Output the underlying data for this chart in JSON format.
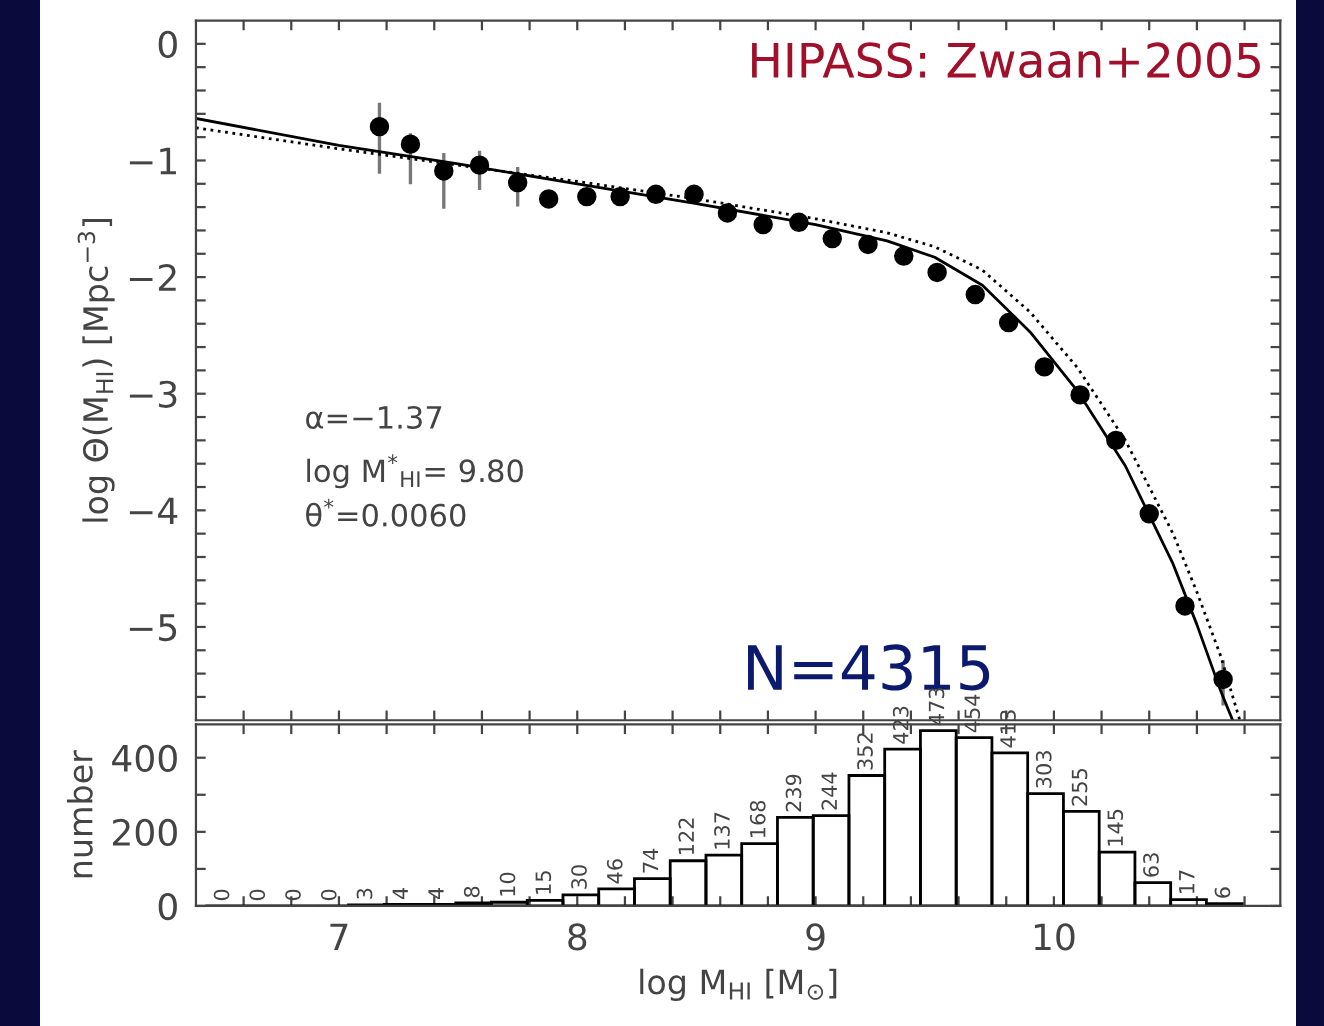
{
  "chart_data": [
    {
      "type": "scatter",
      "ylabel": "log Θ(M$_{HI}$) [Mpc$^{−3}$]",
      "xlim": [
        6.4,
        10.95
      ],
      "ylim": [
        -5.8,
        0.2
      ],
      "xticks": [
        {
          "value": 6.6,
          "label": null
        },
        {
          "value": 6.8,
          "label": null
        },
        {
          "value": 7,
          "label": null
        },
        {
          "value": 7.2,
          "label": null
        },
        {
          "value": 7.4,
          "label": null
        },
        {
          "value": 7.6,
          "label": null
        },
        {
          "value": 7.8,
          "label": null
        },
        {
          "value": 8,
          "label": null
        },
        {
          "value": 8.2,
          "label": null
        },
        {
          "value": 8.4,
          "label": null
        },
        {
          "value": 8.6,
          "label": null
        },
        {
          "value": 8.8,
          "label": null
        },
        {
          "value": 9,
          "label": null
        },
        {
          "value": 9.2,
          "label": null
        },
        {
          "value": 9.4,
          "label": null
        },
        {
          "value": 9.6,
          "label": null
        },
        {
          "value": 9.8,
          "label": null
        },
        {
          "value": 10,
          "label": null
        },
        {
          "value": 10.2,
          "label": null
        },
        {
          "value": 10.4,
          "label": null
        },
        {
          "value": 10.6,
          "label": null
        },
        {
          "value": 10.8,
          "label": null
        }
      ],
      "yticks": [
        0,
        {
          "value": -0.2,
          "label": null
        },
        {
          "value": -0.4,
          "label": null
        },
        {
          "value": -0.6,
          "label": null
        },
        {
          "value": -0.8,
          "label": null
        },
        -1,
        {
          "value": -1.2,
          "label": null
        },
        {
          "value": -1.4,
          "label": null
        },
        {
          "value": -1.6,
          "label": null
        },
        {
          "value": -1.8,
          "label": null
        },
        -2,
        {
          "value": -2.2,
          "label": null
        },
        {
          "value": -2.4,
          "label": null
        },
        {
          "value": -2.6,
          "label": null
        },
        {
          "value": -2.8,
          "label": null
        },
        -3,
        {
          "value": -3.2,
          "label": null
        },
        {
          "value": -3.4,
          "label": null
        },
        {
          "value": -3.6,
          "label": null
        },
        {
          "value": -3.8,
          "label": null
        },
        -4,
        {
          "value": -4.2,
          "label": null
        },
        {
          "value": -4.4,
          "label": null
        },
        {
          "value": -4.6,
          "label": null
        },
        {
          "value": -4.8,
          "label": null
        },
        -5,
        {
          "value": -5.2,
          "label": null
        },
        {
          "value": -5.4,
          "label": null
        },
        {
          "value": -5.6,
          "label": null
        }
      ],
      "tick_labels": "y",
      "grid": false,
      "series": [
        {
          "type": "scatter",
          "color": "#000000",
          "marker": "circle",
          "x": [
            7.17,
            7.3,
            7.44,
            7.59,
            7.75,
            7.88,
            8.04,
            8.18,
            8.33,
            8.49,
            8.63,
            8.78,
            8.93,
            9.07,
            9.22,
            9.37,
            9.51,
            9.67,
            9.81,
            9.96,
            10.11,
            10.26,
            10.4,
            10.55,
            10.71
          ],
          "values": [
            -0.71,
            -0.86,
            -1.09,
            -1.04,
            -1.19,
            -1.33,
            -1.31,
            -1.31,
            -1.29,
            -1.29,
            -1.45,
            -1.55,
            -1.53,
            -1.67,
            -1.72,
            -1.82,
            -1.96,
            -2.15,
            -2.39,
            -2.77,
            -3.01,
            -3.4,
            -4.03,
            -4.82,
            -5.45
          ],
          "errors": [
            [
              -1.1,
              -0.52
            ],
            [
              -1.19,
              -0.78
            ],
            [
              -1.4,
              -0.95
            ],
            [
              -1.24,
              -0.93
            ],
            [
              -1.38,
              -1.07
            ],
            null,
            null,
            null,
            null,
            null,
            null,
            null,
            null,
            null,
            null,
            null,
            null,
            null,
            null,
            null,
            null,
            null,
            null,
            null,
            [
              -5.66,
              -5.3
            ]
          ]
        },
        {
          "type": "line",
          "color": "#000000",
          "line_style": "solid",
          "x": [
            6.4,
            7.0,
            7.5,
            8.0,
            8.5,
            9.0,
            9.3,
            9.5,
            9.7,
            9.9,
            10.1,
            10.3,
            10.5,
            10.6,
            10.7,
            10.75
          ],
          "values": [
            -0.64,
            -0.87,
            -1.03,
            -1.2,
            -1.37,
            -1.55,
            -1.69,
            -1.83,
            -2.07,
            -2.47,
            -2.98,
            -3.62,
            -4.46,
            -4.98,
            -5.55,
            -5.8
          ]
        },
        {
          "type": "line",
          "color": "#000000",
          "line_style": "dotted",
          "x": [
            6.4,
            7.0,
            7.5,
            8.0,
            8.5,
            9.0,
            9.3,
            9.5,
            9.7,
            9.9,
            10.1,
            10.3,
            10.5,
            10.6,
            10.7,
            10.78
          ],
          "values": [
            -0.72,
            -0.9,
            -1.04,
            -1.18,
            -1.33,
            -1.5,
            -1.62,
            -1.74,
            -1.94,
            -2.3,
            -2.78,
            -3.4,
            -4.2,
            -4.7,
            -5.25,
            -5.8
          ]
        }
      ],
      "annotations": [
        "HIPASS: Zwaan+2005",
        "α=−1.37",
        "log M$^{*}$$_{HI}$= 9.80",
        "θ$^{*}$=0.0060",
        "N=4315"
      ]
    },
    {
      "type": "histogram",
      "xlabel": "log M$_{HI}$ [M$_{⊙}$]",
      "ylabel": "number",
      "color": "#000000",
      "data_labels": true,
      "grid": false,
      "xlim": [
        6.4,
        10.95
      ],
      "ylim": [
        0,
        490
      ],
      "xticks": [
        {
          "value": 6.6,
          "label": null
        },
        {
          "value": 6.8,
          "label": null
        },
        7,
        {
          "value": 7.2,
          "label": null
        },
        {
          "value": 7.4,
          "label": null
        },
        {
          "value": 7.6,
          "label": null
        },
        {
          "value": 7.8,
          "label": null
        },
        8,
        {
          "value": 8.2,
          "label": null
        },
        {
          "value": 8.4,
          "label": null
        },
        {
          "value": 8.6,
          "label": null
        },
        {
          "value": 8.8,
          "label": null
        },
        9,
        {
          "value": 9.2,
          "label": null
        },
        {
          "value": 9.4,
          "label": null
        },
        {
          "value": 9.6,
          "label": null
        },
        {
          "value": 9.8,
          "label": null
        },
        10,
        {
          "value": 10.2,
          "label": null
        },
        {
          "value": 10.4,
          "label": null
        },
        {
          "value": 10.6,
          "label": null
        },
        {
          "value": 10.8,
          "label": null
        }
      ],
      "yticks": [
        0,
        {
          "value": 100,
          "label": null
        },
        200,
        {
          "value": 300,
          "label": null
        },
        400
      ],
      "bins": [
        6.44,
        6.59,
        6.74,
        6.89,
        7.04,
        7.19,
        7.34,
        7.49,
        7.64,
        7.79,
        7.94,
        8.09,
        8.24,
        8.39,
        8.54,
        8.69,
        8.84,
        8.99,
        9.14,
        9.29,
        9.44,
        9.59,
        9.74,
        9.89,
        10.04,
        10.19,
        10.34,
        10.49,
        10.64,
        10.79
      ],
      "values": [
        0,
        0,
        0,
        0,
        3,
        4,
        4,
        8,
        10,
        15,
        30,
        46,
        74,
        122,
        137,
        168,
        239,
        244,
        352,
        423,
        473,
        454,
        413,
        303,
        255,
        145,
        63,
        17,
        6
      ]
    }
  ]
}
